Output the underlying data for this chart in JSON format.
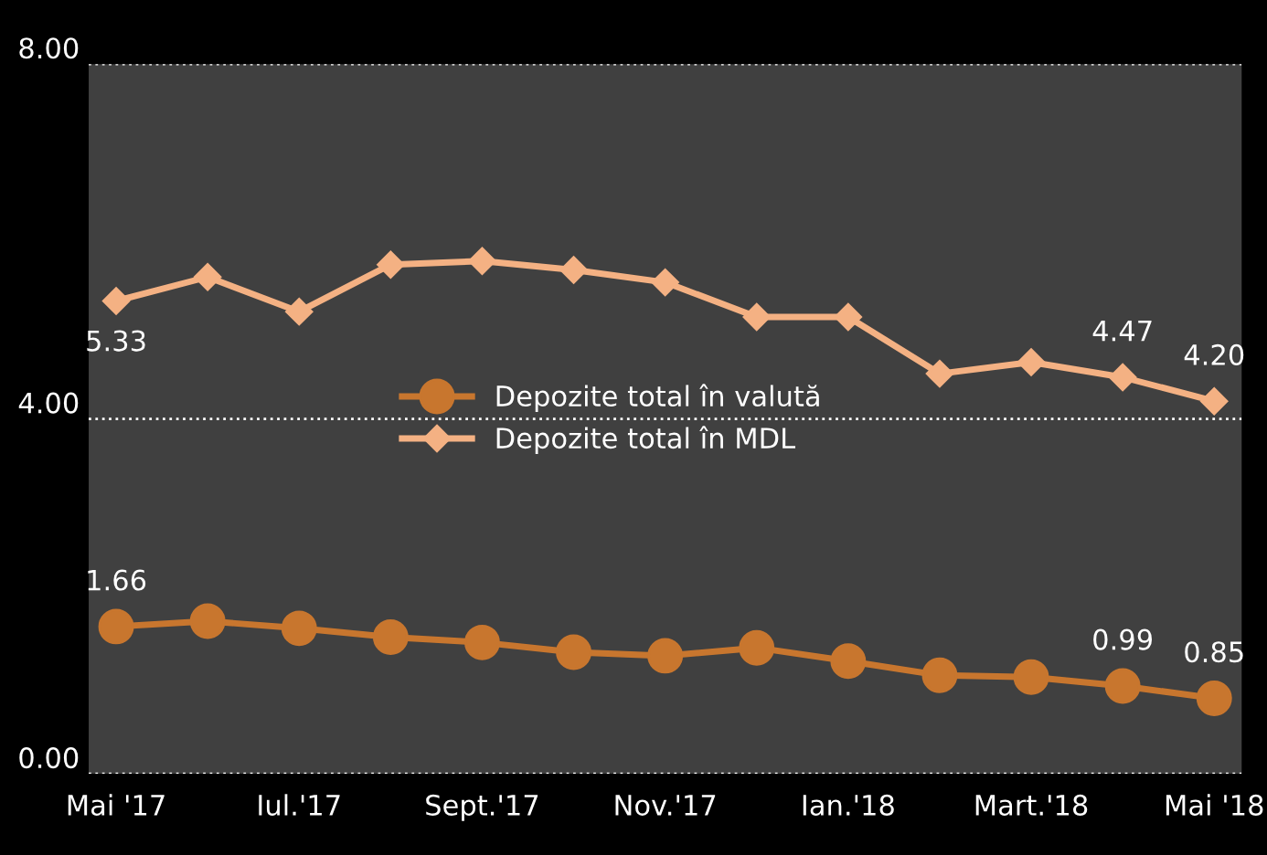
{
  "chart_data": {
    "type": "line",
    "categories": [
      "Mai '17",
      null,
      "Iul.'17",
      null,
      "Sept.'17",
      null,
      "Nov.'17",
      null,
      "Ian.'18",
      null,
      "Mart.'18",
      null,
      "Mai '18"
    ],
    "series": [
      {
        "name": "Depozite total în valută",
        "color": "#c8762e",
        "marker": "circle",
        "values": [
          1.66,
          1.72,
          1.64,
          1.54,
          1.48,
          1.37,
          1.33,
          1.42,
          1.27,
          1.11,
          1.09,
          0.99,
          0.85
        ],
        "value_labels": [
          "1.66",
          null,
          null,
          null,
          null,
          null,
          null,
          null,
          null,
          null,
          null,
          "0.99",
          "0.85"
        ]
      },
      {
        "name": "Depozite total în MDL",
        "color": "#f4b183",
        "marker": "diamond",
        "values": [
          5.33,
          5.6,
          5.21,
          5.74,
          5.78,
          5.68,
          5.54,
          5.15,
          5.15,
          4.51,
          4.64,
          4.47,
          4.2
        ],
        "value_labels": [
          "5.33",
          null,
          null,
          null,
          null,
          null,
          null,
          null,
          null,
          null,
          null,
          "4.47",
          "4.20"
        ]
      }
    ],
    "ylim": [
      0,
      8
    ],
    "yticks": [
      {
        "value": 0,
        "label": "0.00"
      },
      {
        "value": 4,
        "label": "4.00"
      },
      {
        "value": 8,
        "label": "8.00"
      }
    ],
    "grid": "y",
    "legend": "center left",
    "line_style": "solid"
  }
}
